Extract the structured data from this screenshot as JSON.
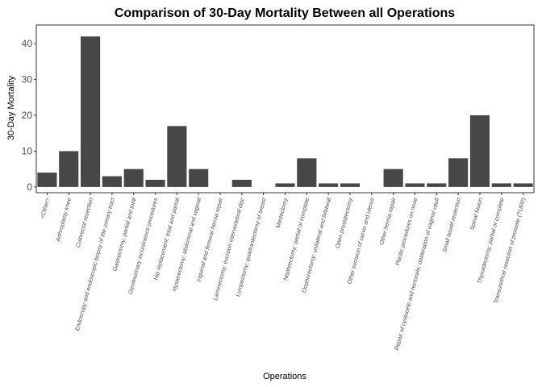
{
  "chart_data": {
    "type": "bar",
    "title": "Comparison of 30-Day Mortality Between all Operations",
    "xlabel": "Operations",
    "ylabel": "30-Day Mortality",
    "ylim": [
      -1.6,
      45.2
    ],
    "yticks": [
      0,
      10,
      20,
      30,
      40
    ],
    "grid": false,
    "bar_color": "#474747",
    "categories": [
      "<Other>",
      "Arthroplasty knee",
      "Colorectal resection",
      "Endoscopy and endoscopic biopsy of the urinary tract",
      "Gastrectomy; partial and total",
      "Genitourinary incontinence procedures",
      "Hip replacement; total and partial",
      "Hysterectomy; abdominal and vaginal",
      "Inguinal and femoral hernia repair",
      "Laminectomy; excision intervertebral disc",
      "Lumpectomy; quadrantectomy of breast",
      "Mastectomy",
      "Nephrectomy; partial or complete",
      "Oophorectomy; unilateral and bilateral",
      "Open prostatectomy",
      "Other excision of cervix and uterus",
      "Other hernia repair",
      "Plastic procedures on nose",
      "Repair of cystocele and rectocele; obliteration of vaginal vault",
      "Small bowel resection",
      "Spinal fusion",
      "Thyroidectomy; partial or complete",
      "Transurethral resection of prostate (TURP)"
    ],
    "values": [
      4,
      10,
      42,
      3,
      5,
      2,
      17,
      5,
      0,
      2,
      0,
      1,
      8,
      1,
      1,
      0,
      5,
      1,
      1,
      8,
      20,
      1,
      1
    ]
  }
}
